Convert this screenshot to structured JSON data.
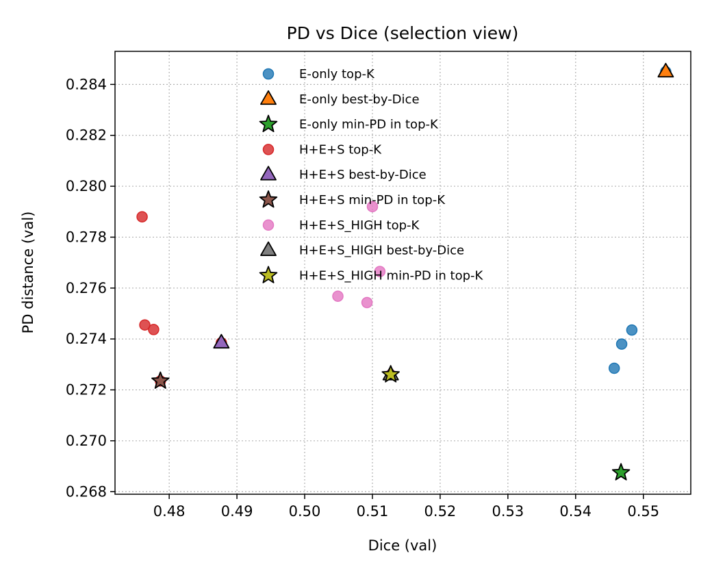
{
  "chart_data": {
    "type": "scatter",
    "title": "PD vs Dice (selection view)",
    "xlabel": "Dice (val)",
    "ylabel": "PD distance (val)",
    "xlim": [
      0.472,
      0.557
    ],
    "ylim": [
      0.2679,
      0.2853
    ],
    "x_ticks": [
      0.48,
      0.49,
      0.5,
      0.51,
      0.52,
      0.53,
      0.54,
      0.55
    ],
    "x_tick_labels": [
      "0.48",
      "0.49",
      "0.50",
      "0.51",
      "0.52",
      "0.53",
      "0.54",
      "0.55"
    ],
    "y_ticks": [
      0.268,
      0.27,
      0.272,
      0.274,
      0.276,
      0.278,
      0.28,
      0.282,
      0.284
    ],
    "y_tick_labels": [
      "0.268",
      "0.270",
      "0.272",
      "0.274",
      "0.276",
      "0.278",
      "0.280",
      "0.282",
      "0.284"
    ],
    "grid": true,
    "legend_position": "upper-center",
    "series": [
      {
        "name": "E-only top-K",
        "marker": "circle",
        "color": "#1f77b4",
        "points": [
          [
            0.5533,
            0.2845
          ],
          [
            0.5483,
            0.27435
          ],
          [
            0.5468,
            0.2738
          ],
          [
            0.5457,
            0.27285
          ]
        ]
      },
      {
        "name": "E-only best-by-Dice",
        "marker": "triangle",
        "color": "#ff7f0e",
        "points": [
          [
            0.5533,
            0.2845
          ]
        ]
      },
      {
        "name": "E-only min-PD in top-K",
        "marker": "star",
        "color": "#2ca02c",
        "points": [
          [
            0.5467,
            0.26875
          ]
        ]
      },
      {
        "name": "H+E+S top-K",
        "marker": "circle",
        "color": "#d62728",
        "points": [
          [
            0.476,
            0.2788
          ],
          [
            0.4764,
            0.27455
          ],
          [
            0.4777,
            0.27437
          ],
          [
            0.4787,
            0.27235
          ],
          [
            0.4877,
            0.27385
          ]
        ]
      },
      {
        "name": "H+E+S best-by-Dice",
        "marker": "triangle",
        "color": "#9467bd",
        "points": [
          [
            0.4877,
            0.27385
          ]
        ]
      },
      {
        "name": "H+E+S min-PD in top-K",
        "marker": "star",
        "color": "#8c564b",
        "points": [
          [
            0.4787,
            0.27235
          ]
        ]
      },
      {
        "name": "H+E+S_HIGH top-K",
        "marker": "circle",
        "color": "#e377c2",
        "points": [
          [
            0.51,
            0.2792
          ],
          [
            0.5111,
            0.27665
          ],
          [
            0.5049,
            0.27568
          ],
          [
            0.5092,
            0.27543
          ],
          [
            0.5127,
            0.2726
          ]
        ]
      },
      {
        "name": "H+E+S_HIGH best-by-Dice",
        "marker": "triangle",
        "color": "#7f7f7f",
        "points": [
          [
            0.5127,
            0.2726
          ]
        ]
      },
      {
        "name": "H+E+S_HIGH min-PD in top-K",
        "marker": "star",
        "color": "#bcbd22",
        "points": [
          [
            0.5127,
            0.2726
          ]
        ]
      }
    ]
  }
}
